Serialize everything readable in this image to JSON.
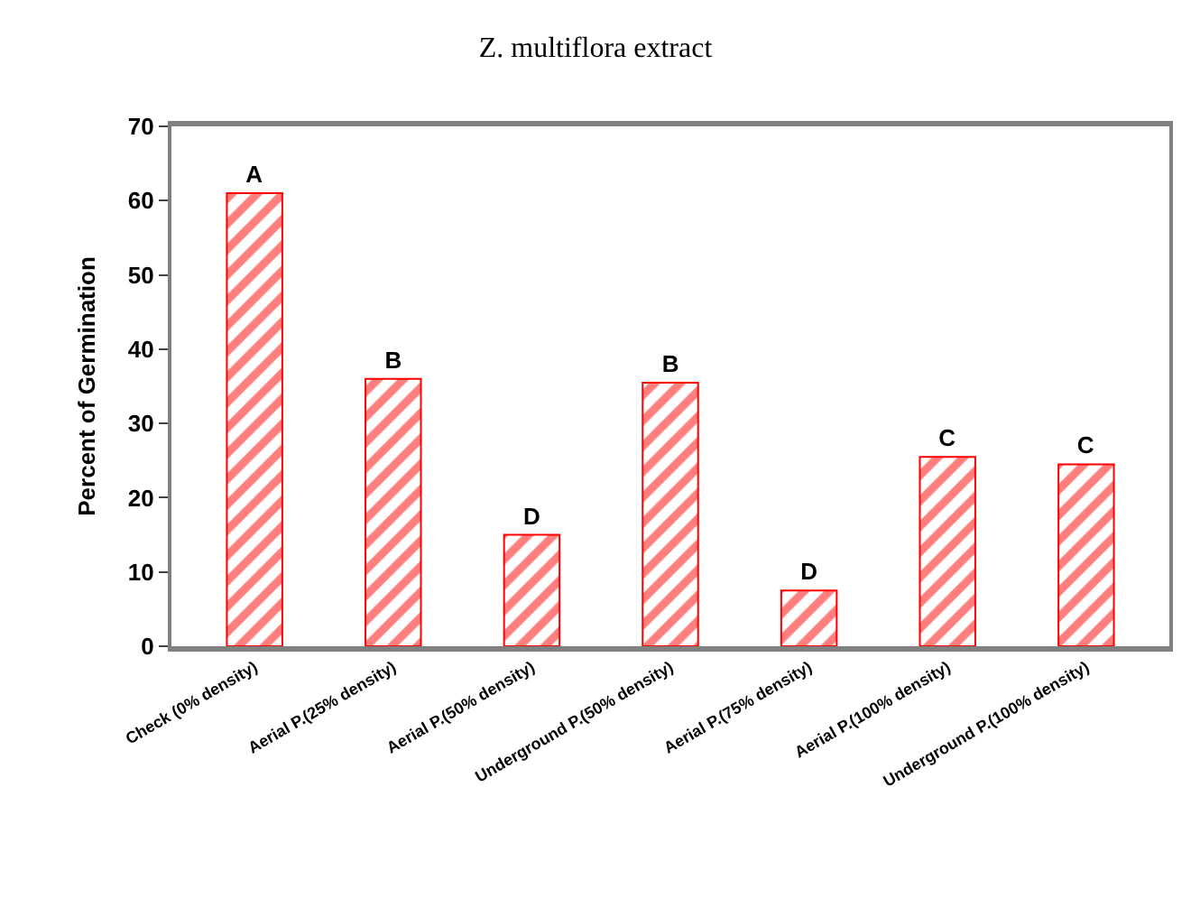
{
  "chart_data": {
    "type": "bar",
    "title": "Z. multiflora extract",
    "ylabel": "Percent of Germination",
    "categories": [
      "Check (0% density)",
      "Aerial P.(25% density)",
      "Aerial P.(50% density)",
      "Underground P.(50% density)",
      "Aerial P.(75% density)",
      "Aerial P.(100% density)",
      "Underground P.(100% density)"
    ],
    "values": [
      61,
      36,
      15,
      35.5,
      7.5,
      25.5,
      24.5
    ],
    "color": "#ff0000",
    "value_labels": [
      "A",
      "B",
      "D",
      "B",
      "D",
      "C",
      "C"
    ],
    "ylim": [
      0,
      70
    ],
    "yticks": [
      0,
      10,
      20,
      30,
      40,
      50,
      60,
      70
    ],
    "legend": false
  }
}
